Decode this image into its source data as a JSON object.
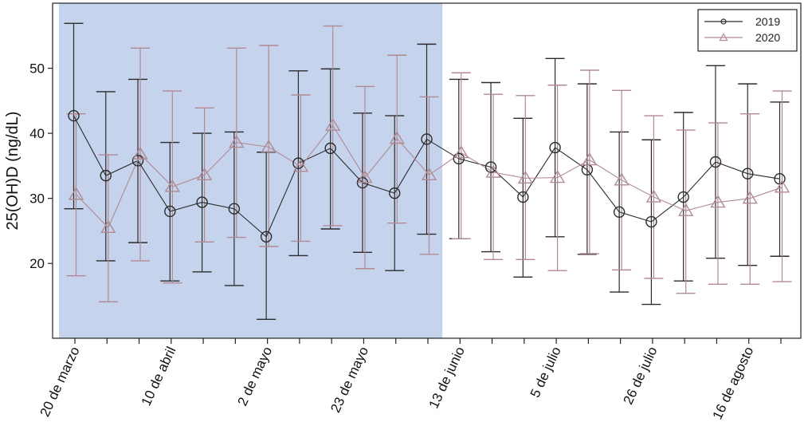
{
  "chart_data": {
    "type": "line",
    "title": "",
    "ylabel": "25(OH)D (ng/dL)",
    "xlabel": "",
    "ylim": [
      8.5,
      60
    ],
    "yticks": [
      20,
      30,
      40,
      50
    ],
    "categories": [
      "20 de marzo",
      "",
      "",
      "10 de abril",
      "",
      "",
      "2 de mayo",
      "",
      "",
      "23 de mayo",
      "",
      "",
      "13 de junio",
      "",
      "",
      "5 de julio",
      "",
      "",
      "26 de julio",
      "",
      "",
      "16 de agosto",
      ""
    ],
    "shaded_range": [
      0,
      11.5
    ],
    "colors": {
      "s2019": "#2b2b2b",
      "s2020": "#b08a93",
      "shade": "#c5d3ec"
    },
    "series": [
      {
        "name": "2019",
        "marker": "circle",
        "values": [
          42.7,
          33.5,
          35.8,
          28.0,
          29.4,
          28.4,
          24.1,
          35.4,
          37.7,
          32.4,
          30.8,
          39.1,
          36.1,
          34.8,
          30.2,
          37.8,
          34.4,
          27.9,
          26.4,
          30.2,
          35.6,
          33.8,
          33.0
        ],
        "lower": [
          28.4,
          20.4,
          23.2,
          17.3,
          18.7,
          16.6,
          11.4,
          21.2,
          25.3,
          21.7,
          18.9,
          24.5,
          23.8,
          21.8,
          17.9,
          24.1,
          21.4,
          15.6,
          13.7,
          17.3,
          20.8,
          19.7,
          21.1
        ],
        "upper": [
          56.9,
          46.4,
          48.3,
          38.6,
          40.0,
          40.2,
          37.1,
          49.6,
          49.9,
          43.1,
          42.7,
          53.7,
          48.3,
          47.8,
          42.3,
          51.5,
          47.6,
          40.2,
          39.0,
          43.2,
          50.4,
          47.6,
          44.8
        ]
      },
      {
        "name": "2020",
        "marker": "triangle",
        "values": [
          30.6,
          25.5,
          36.8,
          31.8,
          33.6,
          38.6,
          37.9,
          34.9,
          41.2,
          33.2,
          39.2,
          33.6,
          37.0,
          34.0,
          33.1,
          33.2,
          35.9,
          32.8,
          30.2,
          28.1,
          29.4,
          30.0,
          31.7
        ],
        "lower": [
          18.1,
          14.1,
          20.4,
          17.0,
          23.3,
          24.0,
          22.6,
          23.4,
          25.8,
          19.2,
          26.2,
          21.4,
          23.8,
          20.6,
          20.6,
          18.9,
          21.5,
          19.0,
          17.7,
          15.4,
          16.8,
          16.8,
          17.2
        ],
        "upper": [
          43.0,
          36.7,
          53.1,
          46.5,
          43.9,
          53.1,
          53.5,
          45.9,
          56.5,
          47.2,
          52.0,
          45.6,
          49.3,
          46.0,
          45.8,
          47.4,
          49.7,
          46.6,
          42.7,
          40.5,
          41.6,
          43.0,
          46.5
        ]
      }
    ],
    "legend": {
      "position": "top-right",
      "entries": [
        "2019",
        "2020"
      ]
    }
  }
}
